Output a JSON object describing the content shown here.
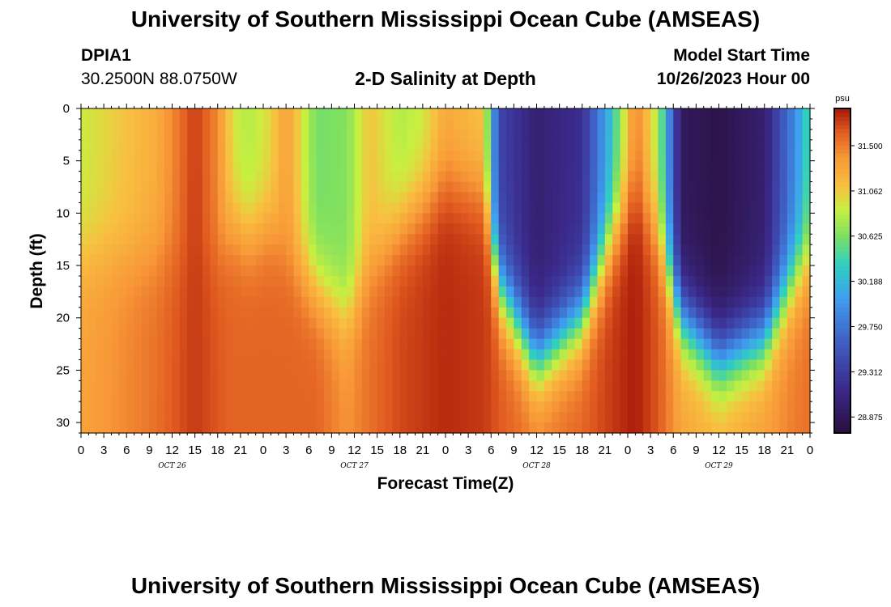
{
  "header": {
    "title": "University of Southern Mississippi Ocean Cube (AMSEAS)",
    "station": "DPIA1",
    "coords": "30.2500N  88.0750W",
    "subtitle": "2-D Salinity at Depth",
    "model_label": "Model Start Time",
    "model_time": "10/26/2023 Hour 00"
  },
  "footer": {
    "title": "University of Southern Mississippi Ocean Cube (AMSEAS)"
  },
  "chart_data": {
    "type": "heatmap",
    "title": "2-D Salinity at Depth",
    "xlabel": "Forecast Time(Z)",
    "ylabel": "Depth (ft)",
    "x_hour_range": [
      0,
      96
    ],
    "y_range": [
      0,
      31
    ],
    "x_ticks": [
      "0",
      "3",
      "6",
      "9",
      "12",
      "15",
      "18",
      "21",
      "0",
      "3",
      "6",
      "9",
      "12",
      "15",
      "18",
      "21",
      "0",
      "3",
      "6",
      "9",
      "12",
      "15",
      "18",
      "21",
      "0",
      "3",
      "6",
      "9",
      "12",
      "15",
      "18",
      "21",
      "0"
    ],
    "y_ticks": [
      0,
      5,
      10,
      15,
      20,
      25,
      30
    ],
    "day_labels": [
      {
        "label": "OCT 26",
        "hour": 12
      },
      {
        "label": "OCT 27",
        "hour": 36
      },
      {
        "label": "OCT 28",
        "hour": 60
      },
      {
        "label": "OCT 29",
        "hour": 84
      }
    ],
    "colorbar": {
      "unit": "psu",
      "tick_values": [
        31.5,
        31.062,
        30.625,
        30.188,
        29.75,
        29.312,
        28.875
      ],
      "tick_labels": [
        "31.500",
        "31.062",
        "30.625",
        "30.188",
        "29.750",
        "29.312",
        "28.875"
      ],
      "range": [
        28.72,
        31.86
      ]
    },
    "salinity_columns": [
      {
        "hour": 0,
        "top": 30.9,
        "bottom": 31.3,
        "transition_depth": 14
      },
      {
        "hour": 6,
        "top": 31.1,
        "bottom": 31.45,
        "transition_depth": 14
      },
      {
        "hour": 10,
        "top": 31.25,
        "bottom": 31.55,
        "transition_depth": 14
      },
      {
        "hour": 15,
        "top": 31.75,
        "bottom": 31.75,
        "transition_depth": 14
      },
      {
        "hour": 18,
        "top": 31.45,
        "bottom": 31.65,
        "transition_depth": 14
      },
      {
        "hour": 20,
        "top": 30.95,
        "bottom": 31.6,
        "transition_depth": 11
      },
      {
        "hour": 22,
        "top": 30.8,
        "bottom": 31.6,
        "transition_depth": 12
      },
      {
        "hour": 25,
        "top": 31.0,
        "bottom": 31.6,
        "transition_depth": 11
      },
      {
        "hour": 27,
        "top": 31.35,
        "bottom": 31.6,
        "transition_depth": 14
      },
      {
        "hour": 31,
        "top": 30.6,
        "bottom": 31.6,
        "transition_depth": 17
      },
      {
        "hour": 35,
        "top": 30.65,
        "bottom": 31.4,
        "transition_depth": 20
      },
      {
        "hour": 38,
        "top": 31.1,
        "bottom": 31.55,
        "transition_depth": 15
      },
      {
        "hour": 42,
        "top": 30.8,
        "bottom": 31.7,
        "transition_depth": 11
      },
      {
        "hour": 45,
        "top": 30.9,
        "bottom": 31.75,
        "transition_depth": 9
      },
      {
        "hour": 48,
        "top": 31.25,
        "bottom": 31.8,
        "transition_depth": 7
      },
      {
        "hour": 53,
        "top": 31.1,
        "bottom": 31.75,
        "transition_depth": 8
      },
      {
        "hour": 55,
        "top": 29.4,
        "bottom": 31.65,
        "transition_depth": 17
      },
      {
        "hour": 60,
        "top": 29.0,
        "bottom": 31.5,
        "transition_depth": 24
      },
      {
        "hour": 66,
        "top": 29.2,
        "bottom": 31.6,
        "transition_depth": 20
      },
      {
        "hour": 70,
        "top": 30.3,
        "bottom": 31.75,
        "transition_depth": 12
      },
      {
        "hour": 73,
        "top": 31.5,
        "bottom": 31.85,
        "transition_depth": 8
      },
      {
        "hour": 76,
        "top": 30.8,
        "bottom": 31.65,
        "transition_depth": 12
      },
      {
        "hour": 79,
        "top": 28.9,
        "bottom": 31.3,
        "transition_depth": 20
      },
      {
        "hour": 84,
        "top": 28.8,
        "bottom": 31.2,
        "transition_depth": 24
      },
      {
        "hour": 90,
        "top": 29.0,
        "bottom": 31.35,
        "transition_depth": 22
      },
      {
        "hour": 94,
        "top": 29.9,
        "bottom": 31.5,
        "transition_depth": 16
      },
      {
        "hour": 96,
        "top": 30.5,
        "bottom": 31.55,
        "transition_depth": 14
      }
    ]
  }
}
